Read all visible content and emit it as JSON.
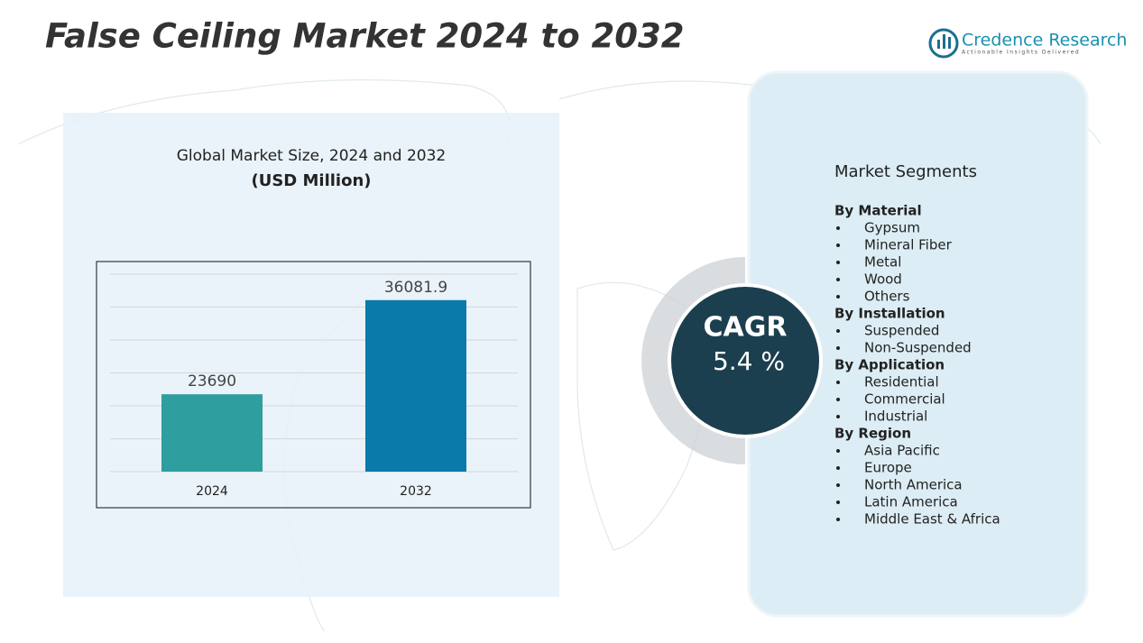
{
  "header": {
    "title": "False Ceiling Market 2024 to 2032",
    "logo": "Credence Research",
    "tagline": "Actionable Insights Delivered"
  },
  "chart_data": {
    "type": "bar",
    "title": "Global Market Size, 2024 and 2032",
    "subtitle": "(USD Million)",
    "categories": [
      "2024",
      "2032"
    ],
    "values": [
      23690,
      36081.9
    ],
    "colors": [
      "#2f9e9e",
      "#0a7aab"
    ],
    "ylim": [
      13500,
      39500
    ],
    "grid": true
  },
  "cagr": {
    "label": "CAGR",
    "value": "5.4 %"
  },
  "segments": {
    "heading": "Market Segments",
    "groups": [
      {
        "name": "By Material",
        "items": [
          "Gypsum",
          "Mineral Fiber",
          "Metal",
          "Wood",
          "Others"
        ]
      },
      {
        "name": "By  Installation",
        "items": [
          "Suspended",
          "Non-Suspended"
        ]
      },
      {
        "name": "By  Application",
        "items": [
          "Residential",
          "Commercial",
          "Industrial"
        ]
      },
      {
        "name": "By Region",
        "items": [
          "Asia Pacific",
          "Europe",
          "North America",
          "Latin America",
          "Middle East & Africa"
        ]
      }
    ]
  }
}
